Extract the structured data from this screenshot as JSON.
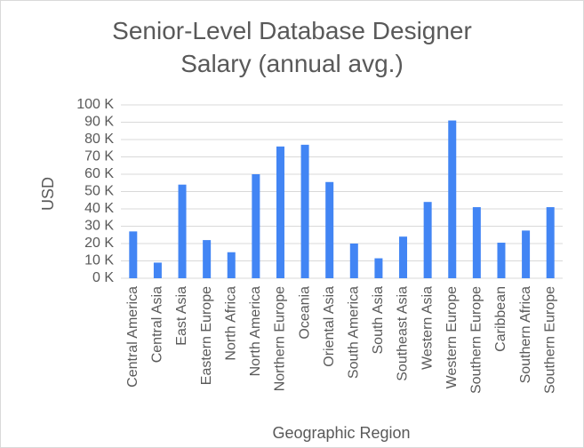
{
  "chart_data": {
    "type": "bar",
    "title_lines": [
      "Senior-Level Database Designer",
      "Salary (annual avg.)"
    ],
    "xlabel": "Geographic Region",
    "ylabel": "USD",
    "ylim": [
      0,
      100000
    ],
    "ytick_step": 10000,
    "ytick_labels": [
      "0 K",
      "10 K",
      "20 K",
      "30 K",
      "40 K",
      "50 K",
      "60 K",
      "70 K",
      "80 K",
      "90 K",
      "100 K"
    ],
    "grid": true,
    "legend": "none",
    "bar_color": "#4285f4",
    "grid_color": "#d9d9d9",
    "categories": [
      "Central America",
      "Central Asia",
      "East Asia",
      "Eastern Europe",
      "North Africa",
      "North America",
      "Northern Europe",
      "Oceania",
      "Oriental Asia",
      "South America",
      "South Asia",
      "Southeast Asia",
      "Western Asia",
      "Western Europe",
      "Southern Europe",
      "Caribbean",
      "Southern Africa",
      "Southern Europe"
    ],
    "values": [
      27000,
      9000,
      54000,
      22000,
      15000,
      60000,
      76000,
      77000,
      55500,
      20000,
      11500,
      24000,
      44000,
      91000,
      41000,
      20500,
      27500,
      41000
    ]
  }
}
